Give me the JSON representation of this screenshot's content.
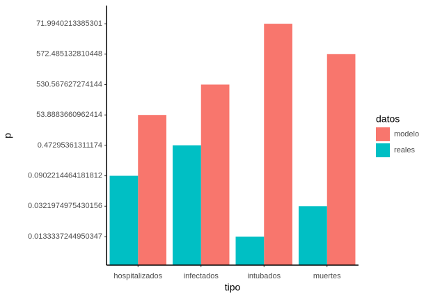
{
  "chart_data": {
    "type": "bar",
    "categories": [
      "hospitalizados",
      "infectados",
      "intubados",
      "muertes"
    ],
    "x_label": "tipo",
    "y_label": "p",
    "ycategories": [
      "0.0133337244950347",
      "0.0321974975430156",
      "0.0902214464181812",
      "0.47295361311174",
      "53.8883660962414",
      "530.567627274144",
      "572.485132810448",
      "71.9940213385301"
    ],
    "legend_title": "datos",
    "legend_position": "right",
    "series": [
      {
        "name": "modelo",
        "color": "#F8766D",
        "values": [
          53.8883660962414,
          530.567627274144,
          71.9940213385301,
          572.485132810448
        ]
      },
      {
        "name": "reales",
        "color": "#00BFC4",
        "values": [
          0.0902214464181812,
          0.47295361311174,
          0.0133337244950347,
          0.0321974975430156
        ]
      }
    ]
  }
}
